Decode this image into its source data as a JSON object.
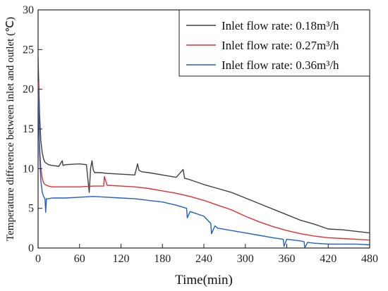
{
  "chart_data": {
    "type": "line",
    "title": "",
    "xlabel": "Time(min)",
    "ylabel": "Temperature difference between inlet and outlet (℃)",
    "xlim": [
      0,
      480
    ],
    "ylim": [
      0,
      30
    ],
    "xticks": [
      0,
      60,
      120,
      180,
      240,
      300,
      360,
      420,
      480
    ],
    "yticks": [
      0,
      5,
      10,
      15,
      20,
      25,
      30
    ],
    "grid": false,
    "legend_position": "top-right",
    "series": [
      {
        "name": "Inlet flow rate: 0.18m³/h",
        "color": "#404040",
        "x": [
          0,
          2,
          4,
          6,
          8,
          10,
          15,
          20,
          30,
          35,
          36,
          40,
          60,
          70,
          74,
          76,
          78,
          80,
          82,
          90,
          100,
          120,
          140,
          144,
          146,
          150,
          160,
          180,
          200,
          210,
          212,
          220,
          240,
          260,
          280,
          300,
          320,
          340,
          360,
          380,
          400,
          420,
          440,
          460,
          480
        ],
        "y": [
          24,
          17,
          13.5,
          12,
          11.2,
          10.8,
          10.5,
          10.4,
          10.3,
          11,
          10.4,
          10.5,
          10.6,
          10.5,
          7,
          10,
          11,
          9.8,
          9.5,
          9.5,
          9.4,
          9.3,
          9.2,
          10.6,
          9.8,
          9.6,
          9.5,
          9.2,
          8.9,
          9.9,
          8.8,
          8.6,
          8,
          7.5,
          7,
          6.3,
          5.6,
          4.9,
          4.2,
          3.5,
          3,
          2.4,
          2.3,
          2.1,
          1.9
        ]
      },
      {
        "name": "Inlet flow rate: 0.27m³/h",
        "color": "#e03030",
        "x": [
          0,
          2,
          4,
          6,
          8,
          10,
          15,
          20,
          40,
          60,
          80,
          95,
          96,
          100,
          120,
          140,
          160,
          180,
          200,
          220,
          240,
          260,
          280,
          300,
          320,
          340,
          360,
          380,
          400,
          420,
          440,
          460,
          480
        ],
        "y": [
          21,
          13,
          10,
          8.8,
          8.2,
          8,
          7.8,
          7.7,
          7.7,
          7.7,
          7.8,
          7.8,
          9,
          7.9,
          7.8,
          7.7,
          7.5,
          7.2,
          6.9,
          6.5,
          6,
          5.4,
          4.8,
          4,
          3.3,
          2.7,
          2.2,
          1.8,
          1.5,
          1.3,
          1.2,
          1.1,
          1.0
        ]
      },
      {
        "name": "Inlet flow rate: 0.36m³/h",
        "color": "#1f5fc8",
        "x": [
          0,
          2,
          4,
          6,
          8,
          10,
          11,
          12,
          15,
          20,
          40,
          60,
          80,
          100,
          120,
          140,
          160,
          180,
          200,
          215,
          216,
          220,
          240,
          250,
          251,
          256,
          260,
          280,
          300,
          320,
          340,
          355,
          356,
          360,
          380,
          385,
          386,
          390,
          400,
          420,
          440,
          460,
          480
        ],
        "y": [
          20,
          12,
          8.5,
          7,
          6.5,
          6.2,
          4.5,
          6.2,
          6.2,
          6.3,
          6.3,
          6.4,
          6.5,
          6.4,
          6.3,
          6.2,
          6,
          5.8,
          5.4,
          5,
          3.8,
          4.6,
          4,
          3.1,
          1.8,
          2.8,
          2.5,
          2.2,
          1.9,
          1.6,
          1.3,
          1.1,
          0.2,
          1.1,
          0.9,
          0.8,
          0,
          0.7,
          0.6,
          0.5,
          0.5,
          0.5,
          0.4
        ]
      }
    ]
  }
}
